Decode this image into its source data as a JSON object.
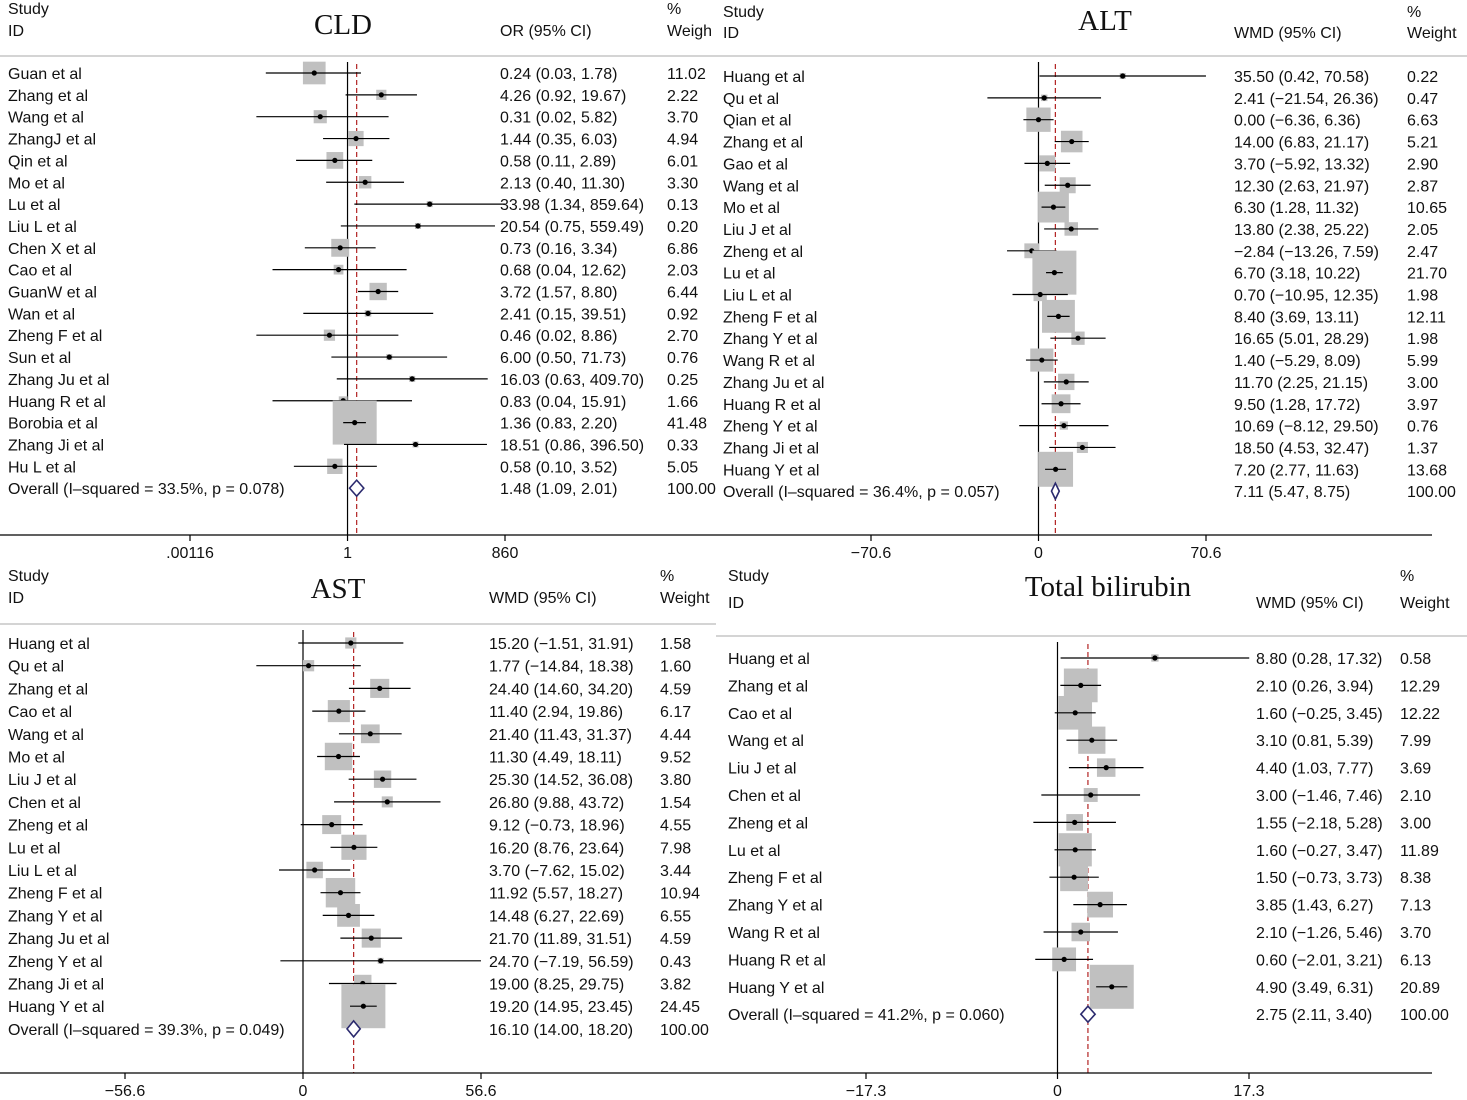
{
  "colors": {
    "box": "#c0c0c0",
    "diamond": "#2b2a6e",
    "dash": "#b22222",
    "line": "#000000"
  },
  "chart_data": [
    {
      "type": "forest",
      "title": "CLD",
      "scale": "log",
      "header": {
        "study": "Study",
        "id": "ID",
        "effect": "OR (95% CI)",
        "pct": "%",
        "weight": "Weigh"
      },
      "ticks": [
        {
          "value": 0.00116,
          "label": ".00116"
        },
        {
          "value": 1,
          "label": "1"
        },
        {
          "value": 860,
          "label": "860"
        }
      ],
      "overall": {
        "label": "Overall  (I–squared = 33.5%, p = 0.078)",
        "est": 1.48,
        "lo": 1.09,
        "hi": 2.01,
        "ci": "1.48 (1.09, 2.01)",
        "weight": "100.00"
      },
      "studies": [
        {
          "label": "Guan et al",
          "est": 0.24,
          "lo": 0.03,
          "hi": 1.78,
          "ci": "0.24 (0.03, 1.78)",
          "weight": "11.02",
          "w": 11.02
        },
        {
          "label": "Zhang et al",
          "est": 4.26,
          "lo": 0.92,
          "hi": 19.67,
          "ci": "4.26 (0.92, 19.67)",
          "weight": "2.22",
          "w": 2.22
        },
        {
          "label": "Wang et al",
          "est": 0.31,
          "lo": 0.02,
          "hi": 5.82,
          "ci": "0.31 (0.02, 5.82)",
          "weight": "3.70",
          "w": 3.7
        },
        {
          "label": "ZhangJ et al",
          "est": 1.44,
          "lo": 0.35,
          "hi": 6.03,
          "ci": "1.44 (0.35, 6.03)",
          "weight": "4.94",
          "w": 4.94
        },
        {
          "label": "Qin et al",
          "est": 0.58,
          "lo": 0.11,
          "hi": 2.89,
          "ci": "0.58 (0.11, 2.89)",
          "weight": "6.01",
          "w": 6.01
        },
        {
          "label": "Mo et al",
          "est": 2.13,
          "lo": 0.4,
          "hi": 11.3,
          "ci": "2.13 (0.40, 11.30)",
          "weight": "3.30",
          "w": 3.3
        },
        {
          "label": "Lu et al",
          "est": 33.98,
          "lo": 1.34,
          "hi": 859.64,
          "ci": "33.98 (1.34, 859.64)",
          "weight": "0.13",
          "w": 0.13
        },
        {
          "label": "Liu L et al",
          "est": 20.54,
          "lo": 0.75,
          "hi": 559.49,
          "ci": "20.54 (0.75, 559.49)",
          "weight": "0.20",
          "w": 0.2
        },
        {
          "label": "Chen X et al",
          "est": 0.73,
          "lo": 0.16,
          "hi": 3.34,
          "ci": "0.73 (0.16, 3.34)",
          "weight": "6.86",
          "w": 6.86
        },
        {
          "label": "Cao et al",
          "est": 0.68,
          "lo": 0.04,
          "hi": 12.62,
          "ci": "0.68 (0.04, 12.62)",
          "weight": "2.03",
          "w": 2.03
        },
        {
          "label": "GuanW et al",
          "est": 3.72,
          "lo": 1.57,
          "hi": 8.8,
          "ci": "3.72 (1.57, 8.80)",
          "weight": "6.44",
          "w": 6.44
        },
        {
          "label": "Wan et al",
          "est": 2.41,
          "lo": 0.15,
          "hi": 39.51,
          "ci": "2.41 (0.15, 39.51)",
          "weight": "0.92",
          "w": 0.92
        },
        {
          "label": "Zheng F et al",
          "est": 0.46,
          "lo": 0.02,
          "hi": 8.86,
          "ci": "0.46 (0.02, 8.86)",
          "weight": "2.70",
          "w": 2.7
        },
        {
          "label": "Sun et al",
          "est": 6.0,
          "lo": 0.5,
          "hi": 71.73,
          "ci": "6.00 (0.50, 71.73)",
          "weight": "0.76",
          "w": 0.76
        },
        {
          "label": "Zhang Ju et al",
          "est": 16.03,
          "lo": 0.63,
          "hi": 409.7,
          "ci": "16.03 (0.63, 409.70)",
          "weight": "0.25",
          "w": 0.25
        },
        {
          "label": "Huang R et al",
          "est": 0.83,
          "lo": 0.04,
          "hi": 15.91,
          "ci": "0.83 (0.04, 15.91)",
          "weight": "1.66",
          "w": 1.66
        },
        {
          "label": "Borobia et al",
          "est": 1.36,
          "lo": 0.83,
          "hi": 2.2,
          "ci": "1.36 (0.83, 2.20)",
          "weight": "41.48",
          "w": 41.48
        },
        {
          "label": "Zhang Ji et al",
          "est": 18.51,
          "lo": 0.86,
          "hi": 396.5,
          "ci": "18.51 (0.86, 396.50)",
          "weight": "0.33",
          "w": 0.33
        },
        {
          "label": "Hu L et al",
          "est": 0.58,
          "lo": 0.1,
          "hi": 3.52,
          "ci": "0.58 (0.10, 3.52)",
          "weight": "5.05",
          "w": 5.05
        }
      ]
    },
    {
      "type": "forest",
      "title": "ALT",
      "scale": "linear",
      "header": {
        "study": "Study",
        "id": "ID",
        "effect": "WMD (95% CI)",
        "pct": "%",
        "weight": "Weight"
      },
      "ticks": [
        {
          "value": -70.6,
          "label": "−70.6"
        },
        {
          "value": 0,
          "label": "0"
        },
        {
          "value": 70.6,
          "label": "70.6"
        }
      ],
      "overall": {
        "label": "Overall  (I–squared = 36.4%, p = 0.057)",
        "est": 7.11,
        "lo": 5.47,
        "hi": 8.75,
        "ci": "7.11 (5.47, 8.75)",
        "weight": "100.00"
      },
      "studies": [
        {
          "label": "Huang et al",
          "est": 35.5,
          "lo": 0.42,
          "hi": 70.58,
          "ci": "35.50 (0.42, 70.58)",
          "weight": "0.22",
          "w": 0.22
        },
        {
          "label": "Qu et al",
          "est": 2.41,
          "lo": -21.54,
          "hi": 26.36,
          "ci": "2.41 (−21.54, 26.36)",
          "weight": "0.47",
          "w": 0.47
        },
        {
          "label": "Qian et al",
          "est": 0.0,
          "lo": -6.36,
          "hi": 6.36,
          "ci": "0.00 (−6.36, 6.36)",
          "weight": "6.63",
          "w": 6.63
        },
        {
          "label": "Zhang et al",
          "est": 14.0,
          "lo": 6.83,
          "hi": 21.17,
          "ci": "14.00 (6.83, 21.17)",
          "weight": "5.21",
          "w": 5.21
        },
        {
          "label": "Gao et al",
          "est": 3.7,
          "lo": -5.92,
          "hi": 13.32,
          "ci": "3.70 (−5.92, 13.32)",
          "weight": "2.90",
          "w": 2.9
        },
        {
          "label": "Wang et al",
          "est": 12.3,
          "lo": 2.63,
          "hi": 21.97,
          "ci": "12.30 (2.63, 21.97)",
          "weight": "2.87",
          "w": 2.87
        },
        {
          "label": "Mo et al",
          "est": 6.3,
          "lo": 1.28,
          "hi": 11.32,
          "ci": "6.30 (1.28, 11.32)",
          "weight": "10.65",
          "w": 10.65
        },
        {
          "label": "Liu J et al",
          "est": 13.8,
          "lo": 2.38,
          "hi": 25.22,
          "ci": "13.80 (2.38, 25.22)",
          "weight": "2.05",
          "w": 2.05
        },
        {
          "label": "Zheng et al",
          "est": -2.84,
          "lo": -13.26,
          "hi": 7.59,
          "ci": "−2.84 (−13.26, 7.59)",
          "weight": "2.47",
          "w": 2.47
        },
        {
          "label": "Lu et al",
          "est": 6.7,
          "lo": 3.18,
          "hi": 10.22,
          "ci": "6.70 (3.18, 10.22)",
          "weight": "21.70",
          "w": 21.7
        },
        {
          "label": "Liu L et al",
          "est": 0.7,
          "lo": -10.95,
          "hi": 12.35,
          "ci": "0.70 (−10.95, 12.35)",
          "weight": "1.98",
          "w": 1.98
        },
        {
          "label": "Zheng F et al",
          "est": 8.4,
          "lo": 3.69,
          "hi": 13.11,
          "ci": "8.40 (3.69, 13.11)",
          "weight": "12.11",
          "w": 12.11
        },
        {
          "label": "Zhang Y et al",
          "est": 16.65,
          "lo": 5.01,
          "hi": 28.29,
          "ci": "16.65 (5.01, 28.29)",
          "weight": "1.98",
          "w": 1.98
        },
        {
          "label": "Wang R et al",
          "est": 1.4,
          "lo": -5.29,
          "hi": 8.09,
          "ci": "1.40 (−5.29, 8.09)",
          "weight": "5.99",
          "w": 5.99
        },
        {
          "label": "Zhang Ju et al",
          "est": 11.7,
          "lo": 2.25,
          "hi": 21.15,
          "ci": "11.70 (2.25, 21.15)",
          "weight": "3.00",
          "w": 3.0
        },
        {
          "label": "Huang R et al",
          "est": 9.5,
          "lo": 1.28,
          "hi": 17.72,
          "ci": "9.50 (1.28, 17.72)",
          "weight": "3.97",
          "w": 3.97
        },
        {
          "label": "Zheng Y et al",
          "est": 10.69,
          "lo": -8.12,
          "hi": 29.5,
          "ci": "10.69 (−8.12, 29.50)",
          "weight": "0.76",
          "w": 0.76
        },
        {
          "label": "Zhang Ji et al",
          "est": 18.5,
          "lo": 4.53,
          "hi": 32.47,
          "ci": "18.50 (4.53, 32.47)",
          "weight": "1.37",
          "w": 1.37
        },
        {
          "label": "Huang Y et al",
          "est": 7.2,
          "lo": 2.77,
          "hi": 11.63,
          "ci": "7.20 (2.77, 11.63)",
          "weight": "13.68",
          "w": 13.68
        }
      ]
    },
    {
      "type": "forest",
      "title": "AST",
      "scale": "linear",
      "header": {
        "study": "Study",
        "id": "ID",
        "effect": "WMD (95% CI)",
        "pct": "%",
        "weight": "Weight"
      },
      "ticks": [
        {
          "value": -56.6,
          "label": "−56.6"
        },
        {
          "value": 0,
          "label": "0"
        },
        {
          "value": 56.6,
          "label": "56.6"
        }
      ],
      "overall": {
        "label": "Overall  (I–squared = 39.3%, p = 0.049)",
        "est": 16.1,
        "lo": 14.0,
        "hi": 18.2,
        "ci": "16.10 (14.00, 18.20)",
        "weight": "100.00"
      },
      "studies": [
        {
          "label": "Huang et al",
          "est": 15.2,
          "lo": -1.51,
          "hi": 31.91,
          "ci": "15.20 (−1.51, 31.91)",
          "weight": "1.58",
          "w": 1.58
        },
        {
          "label": "Qu et al",
          "est": 1.77,
          "lo": -14.84,
          "hi": 18.38,
          "ci": "1.77 (−14.84, 18.38)",
          "weight": "1.60",
          "w": 1.6
        },
        {
          "label": "Zhang et al",
          "est": 24.4,
          "lo": 14.6,
          "hi": 34.2,
          "ci": "24.40 (14.60, 34.20)",
          "weight": "4.59",
          "w": 4.59
        },
        {
          "label": "Cao et al",
          "est": 11.4,
          "lo": 2.94,
          "hi": 19.86,
          "ci": "11.40 (2.94, 19.86)",
          "weight": "6.17",
          "w": 6.17
        },
        {
          "label": "Wang et al",
          "est": 21.4,
          "lo": 11.43,
          "hi": 31.37,
          "ci": "21.40 (11.43, 31.37)",
          "weight": "4.44",
          "w": 4.44
        },
        {
          "label": "Mo et al",
          "est": 11.3,
          "lo": 4.49,
          "hi": 18.11,
          "ci": "11.30 (4.49, 18.11)",
          "weight": "9.52",
          "w": 9.52
        },
        {
          "label": "Liu J et al",
          "est": 25.3,
          "lo": 14.52,
          "hi": 36.08,
          "ci": "25.30 (14.52, 36.08)",
          "weight": "3.80",
          "w": 3.8
        },
        {
          "label": "Chen et al",
          "est": 26.8,
          "lo": 9.88,
          "hi": 43.72,
          "ci": "26.80 (9.88, 43.72)",
          "weight": "1.54",
          "w": 1.54
        },
        {
          "label": "Zheng et al",
          "est": 9.12,
          "lo": -0.73,
          "hi": 18.96,
          "ci": "9.12 (−0.73, 18.96)",
          "weight": "4.55",
          "w": 4.55
        },
        {
          "label": "Lu et al",
          "est": 16.2,
          "lo": 8.76,
          "hi": 23.64,
          "ci": "16.20 (8.76, 23.64)",
          "weight": "7.98",
          "w": 7.98
        },
        {
          "label": "Liu L et al",
          "est": 3.7,
          "lo": -7.62,
          "hi": 15.02,
          "ci": "3.70 (−7.62, 15.02)",
          "weight": "3.44",
          "w": 3.44
        },
        {
          "label": "Zheng F et al",
          "est": 11.92,
          "lo": 5.57,
          "hi": 18.27,
          "ci": "11.92 (5.57, 18.27)",
          "weight": "10.94",
          "w": 10.94
        },
        {
          "label": "Zhang Y et al",
          "est": 14.48,
          "lo": 6.27,
          "hi": 22.69,
          "ci": "14.48 (6.27, 22.69)",
          "weight": "6.55",
          "w": 6.55
        },
        {
          "label": "Zhang Ju et al",
          "est": 21.7,
          "lo": 11.89,
          "hi": 31.51,
          "ci": "21.70 (11.89, 31.51)",
          "weight": "4.59",
          "w": 4.59
        },
        {
          "label": "Zheng Y et al",
          "est": 24.7,
          "lo": -7.19,
          "hi": 56.59,
          "ci": "24.70 (−7.19, 56.59)",
          "weight": "0.43",
          "w": 0.43
        },
        {
          "label": "Zhang Ji et al",
          "est": 19.0,
          "lo": 8.25,
          "hi": 29.75,
          "ci": "19.00 (8.25, 29.75)",
          "weight": "3.82",
          "w": 3.82
        },
        {
          "label": "Huang Y et al",
          "est": 19.2,
          "lo": 14.95,
          "hi": 23.45,
          "ci": "19.20 (14.95, 23.45)",
          "weight": "24.45",
          "w": 24.45
        }
      ]
    },
    {
      "type": "forest",
      "title": "Total bilirubin",
      "scale": "linear",
      "header": {
        "study": "Study",
        "id": "ID",
        "effect": "WMD (95% CI)",
        "pct": "%",
        "weight": "Weight"
      },
      "ticks": [
        {
          "value": -17.3,
          "label": "−17.3"
        },
        {
          "value": 0,
          "label": "0"
        },
        {
          "value": 17.3,
          "label": "17.3"
        }
      ],
      "overall": {
        "label": "Overall  (I–squared = 41.2%, p = 0.060)",
        "est": 2.75,
        "lo": 2.11,
        "hi": 3.4,
        "ci": "2.75 (2.11, 3.40)",
        "weight": "100.00"
      },
      "studies": [
        {
          "label": "Huang et al",
          "est": 8.8,
          "lo": 0.28,
          "hi": 17.32,
          "ci": "8.80 (0.28, 17.32)",
          "weight": "0.58",
          "w": 0.58
        },
        {
          "label": "Zhang et al",
          "est": 2.1,
          "lo": 0.26,
          "hi": 3.94,
          "ci": "2.10 (0.26, 3.94)",
          "weight": "12.29",
          "w": 12.29
        },
        {
          "label": "Cao et al",
          "est": 1.6,
          "lo": -0.25,
          "hi": 3.45,
          "ci": "1.60 (−0.25, 3.45)",
          "weight": "12.22",
          "w": 12.22
        },
        {
          "label": "Wang et al",
          "est": 3.1,
          "lo": 0.81,
          "hi": 5.39,
          "ci": "3.10 (0.81, 5.39)",
          "weight": "7.99",
          "w": 7.99
        },
        {
          "label": "Liu J et al",
          "est": 4.4,
          "lo": 1.03,
          "hi": 7.77,
          "ci": "4.40 (1.03, 7.77)",
          "weight": "3.69",
          "w": 3.69
        },
        {
          "label": "Chen et al",
          "est": 3.0,
          "lo": -1.46,
          "hi": 7.46,
          "ci": "3.00 (−1.46, 7.46)",
          "weight": "2.10",
          "w": 2.1
        },
        {
          "label": "Zheng et al",
          "est": 1.55,
          "lo": -2.18,
          "hi": 5.28,
          "ci": "1.55 (−2.18, 5.28)",
          "weight": "3.00",
          "w": 3.0
        },
        {
          "label": "Lu et al",
          "est": 1.6,
          "lo": -0.27,
          "hi": 3.47,
          "ci": "1.60 (−0.27, 3.47)",
          "weight": "11.89",
          "w": 11.89
        },
        {
          "label": "Zheng F et al",
          "est": 1.5,
          "lo": -0.73,
          "hi": 3.73,
          "ci": "1.50 (−0.73, 3.73)",
          "weight": "8.38",
          "w": 8.38
        },
        {
          "label": "Zhang Y et al",
          "est": 3.85,
          "lo": 1.43,
          "hi": 6.27,
          "ci": "3.85 (1.43, 6.27)",
          "weight": "7.13",
          "w": 7.13
        },
        {
          "label": "Wang R et al",
          "est": 2.1,
          "lo": -1.26,
          "hi": 5.46,
          "ci": "2.10 (−1.26, 5.46)",
          "weight": "3.70",
          "w": 3.7
        },
        {
          "label": "Huang R et al",
          "est": 0.6,
          "lo": -2.01,
          "hi": 3.21,
          "ci": "0.60 (−2.01, 3.21)",
          "weight": "6.13",
          "w": 6.13
        },
        {
          "label": "Huang Y et al",
          "est": 4.9,
          "lo": 3.49,
          "hi": 6.31,
          "ci": "4.90 (3.49, 6.31)",
          "weight": "20.89",
          "w": 20.89
        }
      ]
    }
  ]
}
